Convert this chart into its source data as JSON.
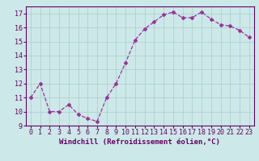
{
  "x": [
    0,
    1,
    2,
    3,
    4,
    5,
    6,
    7,
    8,
    9,
    10,
    11,
    12,
    13,
    14,
    15,
    16,
    17,
    18,
    19,
    20,
    21,
    22,
    23
  ],
  "y": [
    11.0,
    12.0,
    10.0,
    10.0,
    10.5,
    9.8,
    9.5,
    9.3,
    11.0,
    12.0,
    13.5,
    15.1,
    15.9,
    16.4,
    16.9,
    17.1,
    16.7,
    16.7,
    17.1,
    16.6,
    16.2,
    16.1,
    15.8,
    15.3
  ],
  "xlabel": "Windchill (Refroidissement éolien,°C)",
  "ylim": [
    9,
    17.5
  ],
  "xlim": [
    -0.5,
    23.5
  ],
  "yticks": [
    9,
    10,
    11,
    12,
    13,
    14,
    15,
    16,
    17
  ],
  "xticks": [
    0,
    1,
    2,
    3,
    4,
    5,
    6,
    7,
    8,
    9,
    10,
    11,
    12,
    13,
    14,
    15,
    16,
    17,
    18,
    19,
    20,
    21,
    22,
    23
  ],
  "line_color": "#993399",
  "marker": "D",
  "marker_size": 2.0,
  "bg_color": "#cce8e8",
  "grid_color": "#aacccc",
  "text_color": "#660066",
  "xlabel_fontsize": 6.5,
  "tick_fontsize": 6.0,
  "linewidth": 0.9
}
